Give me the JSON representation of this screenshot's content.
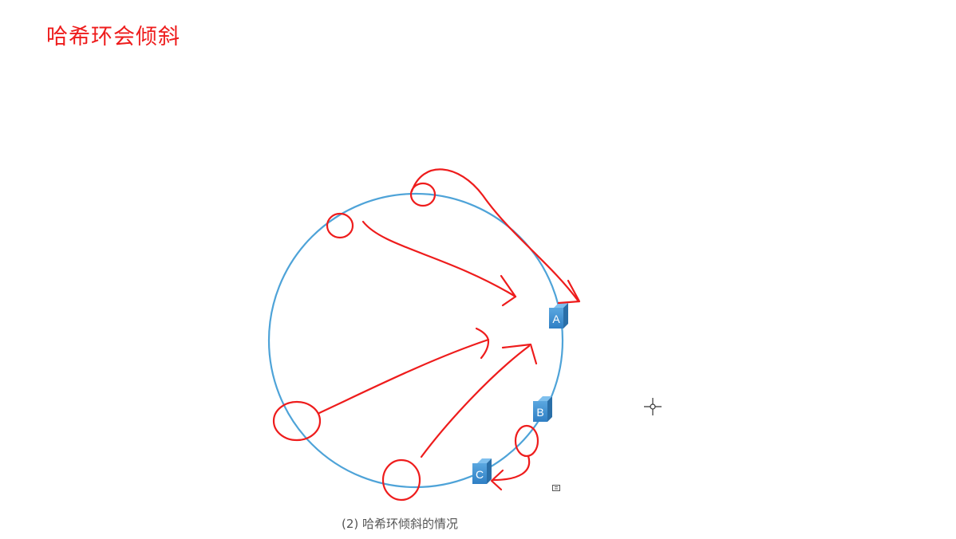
{
  "title": "哈希环会倾斜",
  "caption": "(2) 哈希环倾斜的情况",
  "colors": {
    "title": "#ee1c1c",
    "ring": "#4ea3d8",
    "annotation": "#ee1c1c",
    "node_front": "#3d8fd1",
    "node_top": "#7fc0ee",
    "node_side": "#2a6fa8"
  },
  "nodes": [
    {
      "label": "A"
    },
    {
      "label": "B"
    },
    {
      "label": "C"
    }
  ]
}
